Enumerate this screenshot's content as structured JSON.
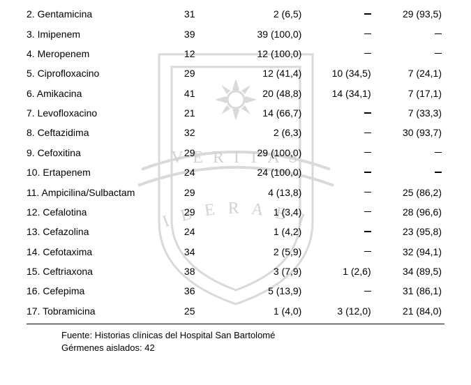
{
  "table": {
    "rows": [
      {
        "name": "2. Gentamicina",
        "c1": "31",
        "c2": "2 (6,5)",
        "c3": "_",
        "c4": "29 (93,5)"
      },
      {
        "name": "3. Imipenem",
        "c1": "39",
        "c2": "39 (100,0)",
        "c3": "_",
        "c4": "_"
      },
      {
        "name": "4. Meropenem",
        "c1": "12",
        "c2": "12 (100,0)",
        "c3": "_",
        "c4": "_"
      },
      {
        "name": "5. Ciprofloxacino",
        "c1": "29",
        "c2": "12 (41,4)",
        "c3": "10 (34,5)",
        "c4": "7 (24,1)"
      },
      {
        "name": "6. Amikacina",
        "c1": "41",
        "c2": "20 (48,8)",
        "c3": "14 (34,1)",
        "c4": "7 (17,1)"
      },
      {
        "name": "7. Levofloxacino",
        "c1": "21",
        "c2": "14 (66,7)",
        "c3": "_",
        "c4": "7 (33,3)"
      },
      {
        "name": "8. Ceftazidima",
        "c1": "32",
        "c2": "2 (6,3)",
        "c3": "_",
        "c4": "30 (93,7)"
      },
      {
        "name": "9. Cefoxitina",
        "c1": "29",
        "c2": "29 (100,0)",
        "c3": "_",
        "c4": "_"
      },
      {
        "name": "10. Ertapenem",
        "c1": "24",
        "c2": "24 (100,0)",
        "c3": "_",
        "c4": "_"
      },
      {
        "name": "11. Ampicilina/Sulbactam",
        "c1": "29",
        "c2": "4 (13,8)",
        "c3": "_",
        "c4": "25 (86,2)"
      },
      {
        "name": "12. Cefalotina",
        "c1": "29",
        "c2": "1 (3,4)",
        "c3": "_",
        "c4": "28 (96,6)"
      },
      {
        "name": "13. Cefazolina",
        "c1": "24",
        "c2": "1 (4,2)",
        "c3": "_",
        "c4": "23 (95,8)"
      },
      {
        "name": "14. Cefotaxima",
        "c1": "34",
        "c2": "2 (5,9)",
        "c3": "_",
        "c4": "32 (94,1)"
      },
      {
        "name": "15. Ceftriaxona",
        "c1": "38",
        "c2": "3 (7,9)",
        "c3": "1 (2,6)",
        "c4": "34 (89,5)"
      },
      {
        "name": "16. Cefepima",
        "c1": "36",
        "c2": "5 (13,9)",
        "c3": "_",
        "c4": "31 (86,1)"
      },
      {
        "name": "17. Tobramicina",
        "c1": "25",
        "c2": "1 (4,0)",
        "c3": "3 (12,0)",
        "c4": "21 (84,0)"
      }
    ]
  },
  "footer": {
    "line1": "Fuente: Historias clínicas del Hospital San Bartolomé",
    "line2": "Gérmenes aislados: 42"
  },
  "watermark": {
    "color": "#d9d9d9",
    "text_veritas": "V E R I T A S",
    "text_liberabit": "L I B E R A B I T",
    "font_family": "'Trajan Pro','Times New Roman',serif"
  },
  "style": {
    "background_color": "#ffffff",
    "text_color": "#000000",
    "font_family": "Arial, Helvetica, sans-serif",
    "font_size": 14,
    "row_padding_v": 6.2,
    "border_color": "#000000",
    "dash_glyph": "_"
  }
}
